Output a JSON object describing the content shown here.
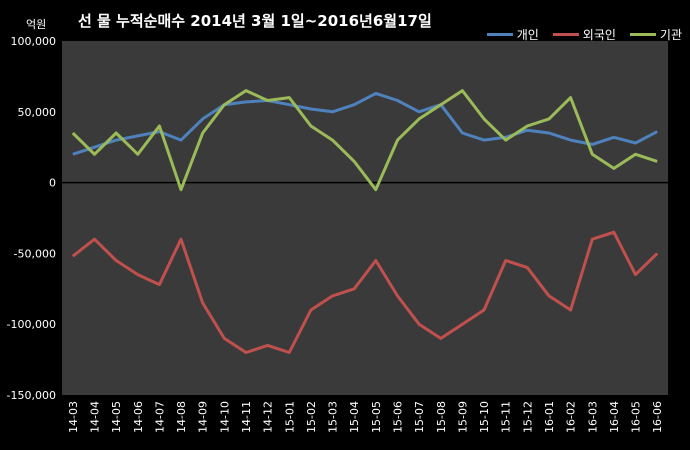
{
  "chart_data": {
    "type": "line",
    "title": "선 물 누적순매수 2014년 3월 1일~2016년6월17일",
    "unit_label": "억원",
    "ylim": [
      -150000,
      100000
    ],
    "y_ticks": [
      "100,000",
      "50,000",
      "0",
      "-50,000",
      "-100,000",
      "-150,000"
    ],
    "y_tick_values": [
      100000,
      50000,
      0,
      -50000,
      -100000,
      -150000
    ],
    "categories": [
      "14-03",
      "14-04",
      "14-05",
      "14-06",
      "14-07",
      "14-08",
      "14-09",
      "14-10",
      "14-11",
      "14-12",
      "15-01",
      "15-02",
      "15-03",
      "15-04",
      "15-05",
      "15-06",
      "15-07",
      "15-08",
      "15-09",
      "15-10",
      "15-11",
      "15-12",
      "16-01",
      "16-02",
      "16-03",
      "16-04",
      "16-05",
      "16-06"
    ],
    "legend_position": "top-right",
    "series": [
      {
        "name": "개인",
        "color": "#4f81bd",
        "values": [
          20000,
          25000,
          30000,
          33000,
          36000,
          30000,
          45000,
          55000,
          57000,
          58000,
          55000,
          52000,
          50000,
          55000,
          63000,
          58000,
          50000,
          55000,
          35000,
          30000,
          32000,
          37000,
          35000,
          30000,
          27000,
          32000,
          28000,
          36000
        ]
      },
      {
        "name": "외국인",
        "color": "#c0504d",
        "values": [
          -52000,
          -40000,
          -55000,
          -65000,
          -72000,
          -40000,
          -85000,
          -110000,
          -120000,
          -115000,
          -120000,
          -90000,
          -80000,
          -75000,
          -55000,
          -80000,
          -100000,
          -110000,
          -100000,
          -90000,
          -55000,
          -60000,
          -80000,
          -90000,
          -40000,
          -35000,
          -65000,
          -50000
        ]
      },
      {
        "name": "기관",
        "color": "#9bbb59",
        "values": [
          35000,
          20000,
          35000,
          20000,
          40000,
          -5000,
          35000,
          55000,
          65000,
          58000,
          60000,
          40000,
          30000,
          15000,
          -5000,
          30000,
          45000,
          55000,
          65000,
          45000,
          30000,
          40000,
          45000,
          60000,
          20000,
          10000,
          20000,
          15000
        ]
      }
    ]
  }
}
